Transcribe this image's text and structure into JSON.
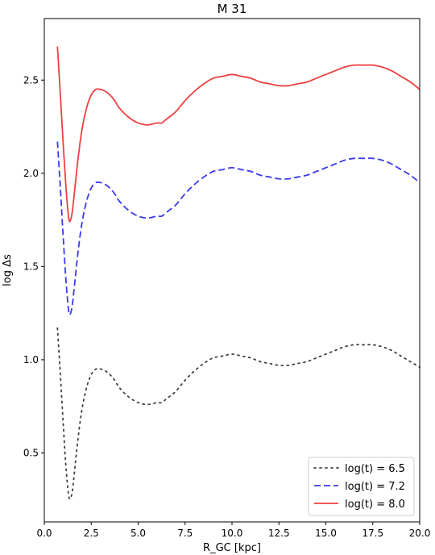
{
  "chart_data": {
    "type": "line",
    "title": "M 31",
    "xlabel": "R_GC [kpc]",
    "ylabel": "log Δs",
    "xlim": [
      0.0,
      20.0
    ],
    "ylim": [
      0.13,
      2.83
    ],
    "xticks": [
      0.0,
      2.5,
      5.0,
      7.5,
      10.0,
      12.5,
      15.0,
      17.5,
      20.0
    ],
    "xtick_labels": [
      "0.0",
      "2.5",
      "5.0",
      "7.5",
      "10.0",
      "12.5",
      "15.0",
      "17.5",
      "20.0"
    ],
    "yticks": [
      0.5,
      1.0,
      1.5,
      2.0,
      2.5
    ],
    "ytick_labels": [
      "0.5",
      "1.0",
      "1.5",
      "2.0",
      "2.5"
    ],
    "grid": false,
    "legend_position": "lower-right",
    "x": [
      0.7,
      0.85,
      1.0,
      1.15,
      1.3,
      1.4,
      1.5,
      1.65,
      1.8,
      2.0,
      2.25,
      2.5,
      2.75,
      3.0,
      3.25,
      3.5,
      3.75,
      4.0,
      4.5,
      5.0,
      5.5,
      6.0,
      6.25,
      6.5,
      7.0,
      7.5,
      8.0,
      8.5,
      9.0,
      9.5,
      10.0,
      10.5,
      11.0,
      11.5,
      12.0,
      12.5,
      13.0,
      13.5,
      14.0,
      14.5,
      15.0,
      15.5,
      16.0,
      16.5,
      17.0,
      17.5,
      18.0,
      18.5,
      19.0,
      19.5,
      20.0
    ],
    "series": [
      {
        "name": "log(t) = 6.5",
        "color": "#404040",
        "style": "dotted",
        "values": [
          1.17,
          0.93,
          0.67,
          0.43,
          0.27,
          0.26,
          0.3,
          0.44,
          0.58,
          0.73,
          0.85,
          0.92,
          0.95,
          0.95,
          0.94,
          0.92,
          0.89,
          0.85,
          0.8,
          0.77,
          0.76,
          0.77,
          0.77,
          0.79,
          0.83,
          0.89,
          0.94,
          0.98,
          1.01,
          1.02,
          1.03,
          1.02,
          1.01,
          0.99,
          0.98,
          0.97,
          0.97,
          0.98,
          0.99,
          1.01,
          1.03,
          1.05,
          1.07,
          1.08,
          1.08,
          1.08,
          1.07,
          1.05,
          1.02,
          0.99,
          0.96
        ]
      },
      {
        "name": "log(t) = 7.2",
        "color": "#3a3aef",
        "style": "dashed",
        "values": [
          2.17,
          1.93,
          1.67,
          1.43,
          1.26,
          1.25,
          1.3,
          1.44,
          1.58,
          1.73,
          1.85,
          1.92,
          1.95,
          1.95,
          1.94,
          1.92,
          1.89,
          1.85,
          1.8,
          1.77,
          1.76,
          1.77,
          1.77,
          1.79,
          1.83,
          1.89,
          1.94,
          1.98,
          2.01,
          2.02,
          2.03,
          2.02,
          2.01,
          1.99,
          1.98,
          1.97,
          1.97,
          1.98,
          1.99,
          2.01,
          2.03,
          2.05,
          2.07,
          2.08,
          2.08,
          2.08,
          2.07,
          2.05,
          2.02,
          1.99,
          1.95
        ]
      },
      {
        "name": "log(t) = 8.0",
        "color": "#ef4040",
        "style": "solid",
        "values": [
          2.68,
          2.43,
          2.17,
          1.93,
          1.76,
          1.75,
          1.8,
          1.94,
          2.08,
          2.23,
          2.35,
          2.42,
          2.45,
          2.45,
          2.44,
          2.42,
          2.39,
          2.35,
          2.3,
          2.27,
          2.26,
          2.27,
          2.27,
          2.29,
          2.33,
          2.39,
          2.44,
          2.48,
          2.51,
          2.52,
          2.53,
          2.52,
          2.51,
          2.49,
          2.48,
          2.47,
          2.47,
          2.48,
          2.49,
          2.51,
          2.53,
          2.55,
          2.57,
          2.58,
          2.58,
          2.58,
          2.57,
          2.55,
          2.52,
          2.49,
          2.45
        ]
      }
    ]
  }
}
